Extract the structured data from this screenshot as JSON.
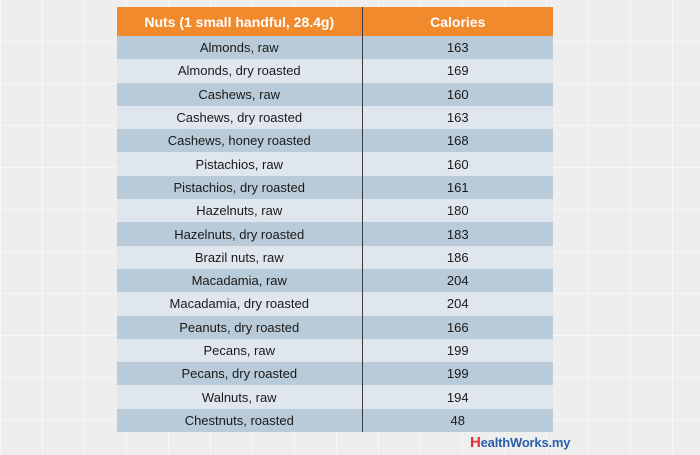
{
  "table": {
    "header": [
      "Nuts (1 small handful, 28.4g)",
      "Calories"
    ],
    "rows": [
      [
        "Almonds, raw",
        163
      ],
      [
        "Almonds, dry roasted",
        169
      ],
      [
        "Cashews, raw",
        160
      ],
      [
        "Cashews, dry roasted",
        163
      ],
      [
        "Cashews, honey roasted",
        168
      ],
      [
        "Pistachios, raw",
        160
      ],
      [
        "Pistachios, dry roasted",
        161
      ],
      [
        "Hazelnuts, raw",
        180
      ],
      [
        "Hazelnuts, dry roasted",
        183
      ],
      [
        "Brazil nuts, raw",
        186
      ],
      [
        "Macadamia, raw",
        204
      ],
      [
        "Macadamia, dry roasted",
        204
      ],
      [
        "Peanuts, dry roasted",
        166
      ],
      [
        "Pecans, raw",
        199
      ],
      [
        "Pecans, dry roasted",
        199
      ],
      [
        "Walnuts, raw",
        194
      ],
      [
        "Chestnuts, roasted",
        48
      ]
    ]
  },
  "logo": {
    "initial": "H",
    "rest": "ealthWorks.my"
  }
}
